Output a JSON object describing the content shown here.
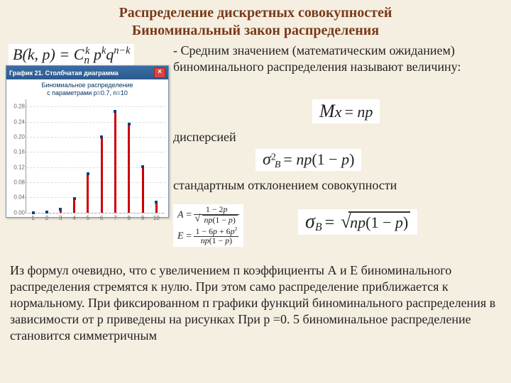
{
  "title_line1": "Распределение дискретных совокупностей",
  "title_line2": "Биноминальный закон распределения",
  "chart_window": {
    "titlebar": "График 21. Столбчатая диаграмма",
    "subtitle_line1": "Биномиальное распределение",
    "subtitle_line2": "с параметрами p=0.7, n=10",
    "ylim": [
      0,
      0.3
    ],
    "ytick_step": 0.04,
    "yticks": [
      "0.00",
      "0.04",
      "0.08",
      "0.12",
      "0.16",
      "0.20",
      "0.24",
      "0.28"
    ],
    "xticks": [
      "1",
      "2",
      "3",
      "4",
      "5",
      "6",
      "7",
      "8",
      "9",
      "10"
    ],
    "bars": [
      0.0,
      0.001,
      0.009,
      0.037,
      0.103,
      0.2,
      0.267,
      0.233,
      0.121,
      0.028
    ],
    "bar_color": "#cc0000",
    "point_color": "#004080",
    "bg": "#ffffff",
    "grid_color": "#dddddd"
  },
  "text": {
    "mean": " - Средним значением (математическим ожиданием) биноминального распределения называют величину:",
    "disp": "дисперсией",
    "std": "стандартным отклонением совокупности",
    "bottom": "Из формул   очевидно, что с увеличением п коэффициенты А и Е биноминального распределения стремятся к нулю. При этом само распределение приближается к нормальному. При фиксированном п графики функций биноминального распределения в зависимости от р приведены на рисунках При р =0. 5 биноминальное распределение становится симметричным"
  },
  "formulas": {
    "main": "B(k, p) = C",
    "mean": "Mx = np",
    "var": "σ²ᴮ = np(1 − p)",
    "std": "σᴮ = ",
    "std_root": "np(1 − p)",
    "A_lhs": "A = ",
    "A_num": "1 − 2p",
    "A_den_root": "np(1 − p)",
    "E_lhs": "E = ",
    "E_num": "1 − 6p + 6p²",
    "E_den": "np(1 − p)"
  }
}
